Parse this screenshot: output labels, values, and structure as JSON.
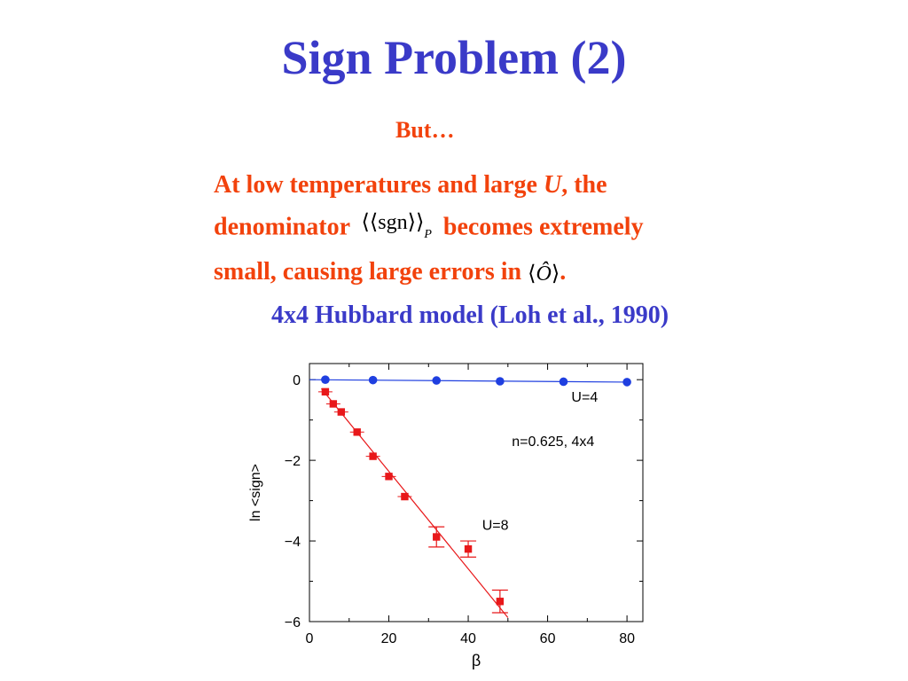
{
  "slide": {
    "title": "Sign Problem (2)",
    "but": "But…",
    "para": {
      "line1_a": "At low temperatures and large ",
      "line1_u": "U",
      "line1_b": ", the",
      "line2_a": "denominator",
      "math_inner": "sgn",
      "math_sub": "P",
      "line2_b": "becomes extremely",
      "line3_a": "small, causing large errors in",
      "math_O": "O",
      "line3_b": "."
    },
    "subtitle": "4x4 Hubbard model (Loh et al., 1990)"
  },
  "chart_data": {
    "type": "scatter",
    "xlabel": "β",
    "ylabel": "ln <sign>",
    "xlim": [
      0,
      84
    ],
    "ylim": [
      -6,
      0.4
    ],
    "xticks": [
      0,
      20,
      40,
      60,
      80
    ],
    "yticks": [
      0,
      -2,
      -4,
      -6
    ],
    "ytick_labels": [
      "0",
      "−2",
      "−4",
      "−6"
    ],
    "annotation": "n=0.625, 4x4",
    "series": [
      {
        "name": "U=4",
        "color": "#1f3fe0",
        "marker": "circle",
        "x": [
          4,
          16,
          32,
          48,
          64,
          80
        ],
        "y": [
          0.0,
          -0.01,
          -0.02,
          -0.04,
          -0.05,
          -0.06
        ],
        "err": [
          0,
          0,
          0,
          0,
          0,
          0
        ],
        "fit": [
          [
            0,
            0.0
          ],
          [
            80,
            -0.06
          ]
        ]
      },
      {
        "name": "U=8",
        "color": "#e8181a",
        "marker": "square",
        "x": [
          4,
          6,
          8,
          12,
          16,
          20,
          24,
          32,
          40,
          48
        ],
        "y": [
          -0.3,
          -0.6,
          -0.8,
          -1.3,
          -1.9,
          -2.4,
          -2.9,
          -3.9,
          -4.2,
          -5.5
        ],
        "err": [
          0,
          0,
          0,
          0,
          0,
          0,
          0,
          0.25,
          0.2,
          0.28
        ],
        "fit": [
          [
            3,
            -0.22
          ],
          [
            50,
            -5.9
          ]
        ]
      }
    ]
  }
}
